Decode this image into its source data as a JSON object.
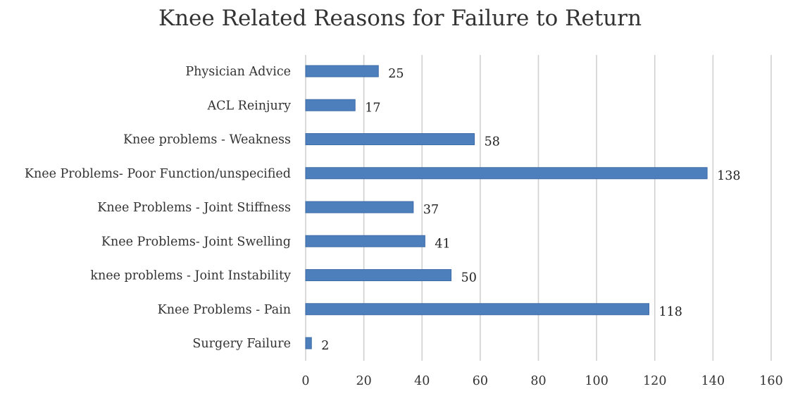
{
  "chart_data": {
    "type": "bar",
    "orientation": "horizontal",
    "title": "Knee Related Reasons for Failure to Return",
    "categories": [
      "Physician Advice",
      "ACL Reinjury",
      "Knee problems - Weakness",
      "Knee Problems- Poor Function/unspecified",
      "Knee Problems - Joint Stiffness",
      "Knee Problems- Joint Swelling",
      "knee problems - Joint Instability",
      "Knee Problems - Pain",
      "Surgery Failure"
    ],
    "values": [
      25,
      17,
      58,
      138,
      37,
      41,
      50,
      118,
      2
    ],
    "xlim": [
      0,
      160
    ],
    "xticks": [
      0,
      20,
      40,
      60,
      80,
      100,
      120,
      140,
      160
    ],
    "grid": "vertical",
    "legend": "none",
    "bar_color": "#4e7fbd"
  }
}
